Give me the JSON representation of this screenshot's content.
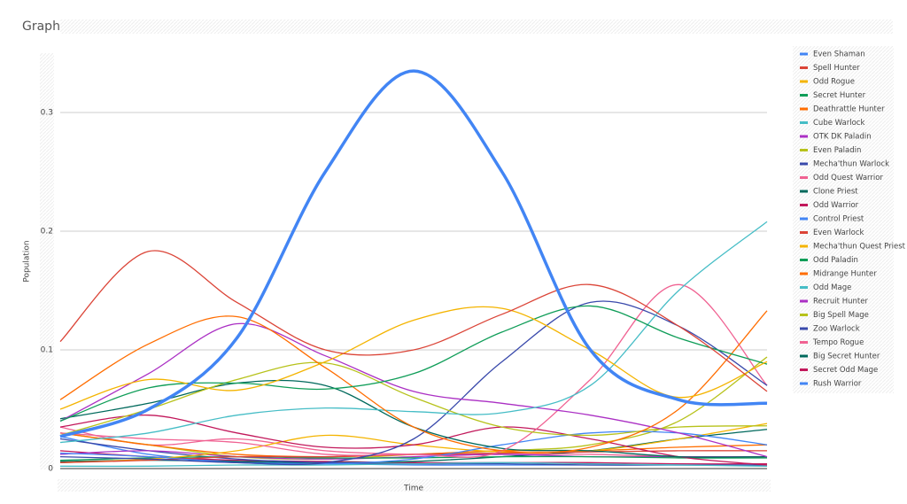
{
  "chart_data": {
    "type": "line",
    "title": "Graph",
    "x_label": "Time",
    "y_label": "Population",
    "categories": [
      null,
      null,
      null,
      null,
      null,
      null,
      null,
      null,
      null
    ],
    "ylim": [
      0,
      0.35
    ],
    "yticks": [
      0,
      0.1,
      0.2,
      0.3
    ],
    "grid": true,
    "legend": "right",
    "smooth": true,
    "series": [
      {
        "name": "Even Shaman",
        "color": "#4285f4",
        "emphasis": true,
        "values": [
          0.027,
          0.05,
          0.11,
          0.25,
          0.335,
          0.25,
          0.1,
          0.058,
          0.055
        ]
      },
      {
        "name": "Spell Hunter",
        "color": "#db4437",
        "values": [
          0.107,
          0.183,
          0.14,
          0.1,
          0.1,
          0.13,
          0.155,
          0.12,
          0.065
        ]
      },
      {
        "name": "Odd Rogue",
        "color": "#f4b400",
        "values": [
          0.05,
          0.075,
          0.066,
          0.09,
          0.125,
          0.135,
          0.1,
          0.06,
          0.09
        ]
      },
      {
        "name": "Secret Hunter",
        "color": "#0f9d58",
        "values": [
          0.04,
          0.068,
          0.072,
          0.067,
          0.08,
          0.115,
          0.137,
          0.11,
          0.088
        ]
      },
      {
        "name": "Deathrattle Hunter",
        "color": "#ff6d00",
        "values": [
          0.058,
          0.105,
          0.128,
          0.085,
          0.035,
          0.015,
          0.018,
          0.05,
          0.133
        ]
      },
      {
        "name": "Cube Warlock",
        "color": "#46bdc6",
        "values": [
          0.022,
          0.03,
          0.045,
          0.051,
          0.048,
          0.047,
          0.07,
          0.15,
          0.208
        ]
      },
      {
        "name": "OTK DK Paladin",
        "color": "#ab30c4",
        "values": [
          0.04,
          0.08,
          0.122,
          0.095,
          0.065,
          0.055,
          0.045,
          0.03,
          0.01
        ]
      },
      {
        "name": "Even Paladin",
        "color": "#b7c21b",
        "values": [
          0.028,
          0.05,
          0.075,
          0.089,
          0.06,
          0.035,
          0.028,
          0.035,
          0.036
        ]
      },
      {
        "name": "Mecha'thun Warlock",
        "color": "#3949ab",
        "values": [
          0.01,
          0.008,
          0.005,
          0.005,
          0.025,
          0.09,
          0.14,
          0.12,
          0.07
        ]
      },
      {
        "name": "Odd Quest Warrior",
        "color": "#f06292",
        "values": [
          0.03,
          0.025,
          0.022,
          0.012,
          0.012,
          0.015,
          0.075,
          0.155,
          0.07
        ]
      },
      {
        "name": "Clone Priest",
        "color": "#00695c",
        "values": [
          0.042,
          0.055,
          0.072,
          0.07,
          0.035,
          0.017,
          0.015,
          0.01,
          0.01
        ]
      },
      {
        "name": "Odd Warrior",
        "color": "#c2185b",
        "values": [
          0.035,
          0.045,
          0.03,
          0.018,
          0.02,
          0.035,
          0.025,
          0.01,
          0.003
        ]
      },
      {
        "name": "Control Priest",
        "color": "#4285f4",
        "values": [
          0.013,
          0.01,
          0.005,
          0.004,
          0.008,
          0.02,
          0.03,
          0.03,
          0.02
        ]
      },
      {
        "name": "Even Warlock",
        "color": "#db4437",
        "values": [
          0.005,
          0.007,
          0.01,
          0.01,
          0.012,
          0.013,
          0.014,
          0.015,
          0.015
        ]
      },
      {
        "name": "Mecha'thun Quest Priest",
        "color": "#f4b400",
        "values": [
          0.005,
          0.008,
          0.015,
          0.028,
          0.02,
          0.014,
          0.015,
          0.025,
          0.038
        ]
      },
      {
        "name": "Odd Paladin",
        "color": "#0f9d58",
        "values": [
          0.007,
          0.009,
          0.01,
          0.009,
          0.009,
          0.01,
          0.01,
          0.009,
          0.009
        ]
      },
      {
        "name": "Midrange Hunter",
        "color": "#ff6d00",
        "values": [
          0.03,
          0.02,
          0.012,
          0.01,
          0.012,
          0.015,
          0.015,
          0.018,
          0.02
        ]
      },
      {
        "name": "Odd Mage",
        "color": "#46bdc6",
        "values": [
          0.002,
          0.002,
          0.003,
          0.003,
          0.004,
          0.005,
          0.004,
          0.003,
          0.002
        ]
      },
      {
        "name": "Recruit Hunter",
        "color": "#ab30c4",
        "values": [
          0.012,
          0.015,
          0.01,
          0.008,
          0.01,
          0.012,
          0.01,
          0.01,
          0.01
        ]
      },
      {
        "name": "Big Spell Mage",
        "color": "#b7c21b",
        "values": [
          0.03,
          0.02,
          0.01,
          0.008,
          0.012,
          0.015,
          0.02,
          0.04,
          0.094
        ]
      },
      {
        "name": "Zoo Warlock",
        "color": "#3949ab",
        "values": [
          0.025,
          0.015,
          0.008,
          0.005,
          0.004,
          0.004,
          0.003,
          0.003,
          0.003
        ]
      },
      {
        "name": "Tempo Rogue",
        "color": "#f06292",
        "values": [
          0.035,
          0.02,
          0.025,
          0.015,
          0.012,
          0.012,
          0.012,
          0.01,
          0.01
        ]
      },
      {
        "name": "Big Secret Hunter",
        "color": "#00695c",
        "values": [
          0.006,
          0.007,
          0.006,
          0.005,
          0.006,
          0.01,
          0.015,
          0.025,
          0.033
        ]
      },
      {
        "name": "Secret Odd Mage",
        "color": "#c2185b",
        "values": [
          0.015,
          0.01,
          0.007,
          0.006,
          0.005,
          0.005,
          0.005,
          0.004,
          0.004
        ]
      },
      {
        "name": "Rush Warrior",
        "color": "#4285f4",
        "values": [
          0.027,
          0.012,
          0.006,
          0.004,
          0.003,
          0.003,
          0.003,
          0.003,
          0.003
        ]
      }
    ]
  }
}
